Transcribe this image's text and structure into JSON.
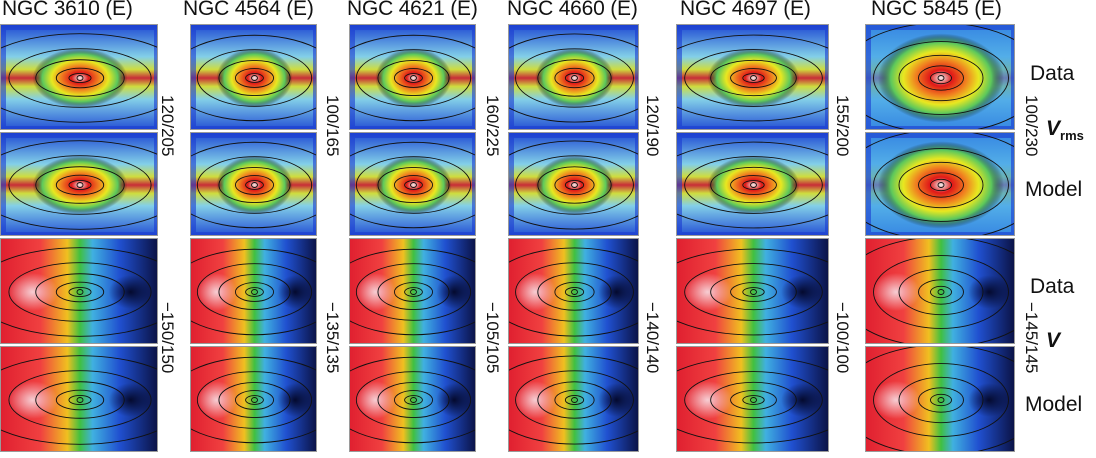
{
  "galaxies": [
    {
      "name": "NGC 3610 (E)",
      "vrms_range": "120/205",
      "v_range": "−150/150"
    },
    {
      "name": "NGC 4564 (E)",
      "vrms_range": "100/165",
      "v_range": "−135/135"
    },
    {
      "name": "NGC 4621 (E)",
      "vrms_range": "160/225",
      "v_range": "−105/105"
    },
    {
      "name": "NGC 4660 (E)",
      "vrms_range": "120/190",
      "v_range": "−140/140"
    },
    {
      "name": "NGC 4697 (E)",
      "vrms_range": "155/200",
      "v_range": "−100/100"
    },
    {
      "name": "NGC 5845 (E)",
      "vrms_range": "100/230",
      "v_range": "−145/145"
    }
  ],
  "row_labels": {
    "vrms_data": "Data",
    "vrms_model": "Model",
    "v_data": "Data",
    "v_model": "Model"
  },
  "quantities": {
    "vrms": {
      "symbol": "V",
      "subscript": "rms"
    },
    "v": {
      "symbol": "V"
    }
  },
  "colormap": [
    "#08083a",
    "#1a3bd0",
    "#3fa0e8",
    "#8fd8e8",
    "#5cc85c",
    "#e8e820",
    "#f08020",
    "#e01818",
    "#f0f0f0"
  ]
}
